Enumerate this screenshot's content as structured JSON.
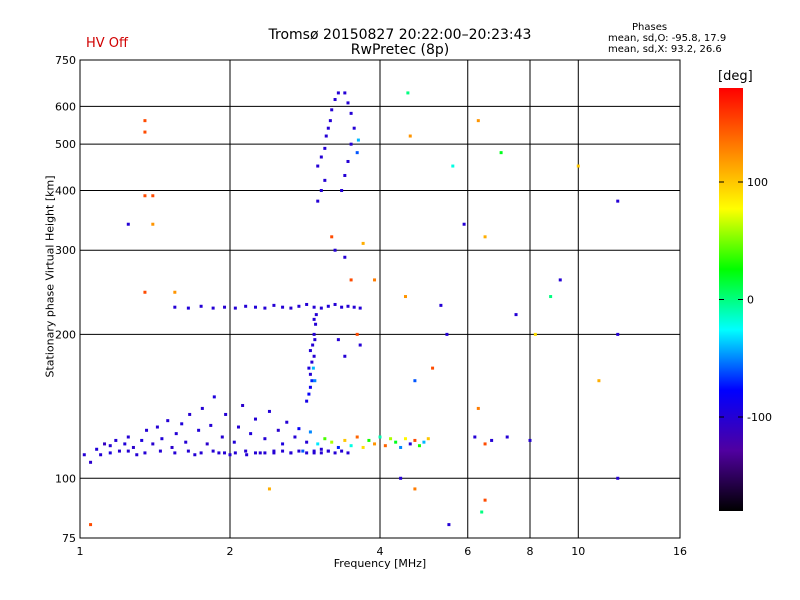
{
  "header": {
    "hv_status": "HV Off",
    "title": "Tromsø 20150827 20:22:00–20:23:43",
    "subtitle": "RwPretec (8p)"
  },
  "phases": {
    "title": "Phases",
    "o_line": "mean, sd,O: -95.8, 17.9",
    "x_line": "mean, sd,X: 93.2, 26.6"
  },
  "colorbar": {
    "label": "[deg]",
    "ticks": [
      "100",
      "0",
      "-100"
    ],
    "colors": [
      "#ff0000",
      "#ff8000",
      "#ffff00",
      "#00ff00",
      "#00ffff",
      "#0000ff",
      "#5000a0",
      "#000000"
    ]
  },
  "chart_data": {
    "type": "scatter",
    "xlabel": "Frequency [MHz]",
    "ylabel": "Stationary phase Virtual Height [km]",
    "xscale": "log",
    "yscale": "log",
    "xlim": [
      1,
      16
    ],
    "ylim": [
      75,
      750
    ],
    "xticks": [
      "1",
      "2",
      "4",
      "6",
      "8",
      "10",
      "16"
    ],
    "yticks": [
      "75",
      "100",
      "200",
      "300",
      "400",
      "500",
      "600",
      "750"
    ],
    "colorbar_range": [
      -180,
      180
    ],
    "series": [
      {
        "points": [
          [
            1.02,
            112,
            -100
          ],
          [
            1.05,
            108,
            -105
          ],
          [
            1.08,
            115,
            -98
          ],
          [
            1.1,
            112,
            -100
          ],
          [
            1.12,
            118,
            -110
          ],
          [
            1.15,
            113,
            -95
          ],
          [
            1.18,
            120,
            -100
          ],
          [
            1.2,
            114,
            -102
          ],
          [
            1.23,
            118,
            -98
          ],
          [
            1.25,
            122,
            -100
          ],
          [
            1.28,
            116,
            -105
          ],
          [
            1.3,
            112,
            -100
          ],
          [
            1.33,
            120,
            -95
          ],
          [
            1.36,
            126,
            -100
          ],
          [
            1.4,
            118,
            -103
          ],
          [
            1.43,
            128,
            -100
          ],
          [
            1.46,
            121,
            -98
          ],
          [
            1.5,
            132,
            -100
          ],
          [
            1.53,
            116,
            -105
          ],
          [
            1.56,
            124,
            -100
          ],
          [
            1.6,
            130,
            -97
          ],
          [
            1.63,
            119,
            -100
          ],
          [
            1.66,
            136,
            -102
          ],
          [
            1.7,
            112,
            -100
          ],
          [
            1.73,
            126,
            -98
          ],
          [
            1.76,
            140,
            -100
          ],
          [
            1.8,
            118,
            -105
          ],
          [
            1.83,
            129,
            -100
          ],
          [
            1.86,
            148,
            -96
          ],
          [
            1.9,
            113,
            -100
          ],
          [
            1.93,
            122,
            -101
          ],
          [
            1.96,
            136,
            -100
          ],
          [
            2.0,
            112,
            -100
          ],
          [
            2.04,
            119,
            -98
          ],
          [
            2.08,
            128,
            -100
          ],
          [
            2.12,
            142,
            -104
          ],
          [
            2.16,
            112,
            -100
          ],
          [
            2.2,
            124,
            -97
          ],
          [
            2.25,
            133,
            -100
          ],
          [
            2.3,
            113,
            -102
          ],
          [
            2.35,
            121,
            -100
          ],
          [
            2.4,
            138,
            -99
          ],
          [
            2.45,
            114,
            -100
          ],
          [
            2.5,
            126,
            -103
          ],
          [
            2.55,
            118,
            -95
          ],
          [
            2.6,
            131,
            -100
          ],
          [
            2.65,
            113,
            -98
          ],
          [
            2.7,
            122,
            -100
          ],
          [
            2.75,
            127,
            -80
          ],
          [
            2.8,
            114,
            -60
          ],
          [
            2.85,
            119,
            -100
          ],
          [
            2.9,
            125,
            -50
          ],
          [
            2.95,
            114,
            -100
          ],
          [
            3.0,
            118,
            -30
          ],
          [
            3.05,
            115,
            -100
          ],
          [
            3.1,
            121,
            40
          ],
          [
            3.15,
            114,
            -100
          ],
          [
            3.2,
            119,
            60
          ],
          [
            3.3,
            116,
            -70
          ],
          [
            3.4,
            120,
            100
          ],
          [
            3.5,
            117,
            -20
          ],
          [
            3.6,
            122,
            140
          ],
          [
            3.7,
            116,
            90
          ],
          [
            3.8,
            120,
            30
          ],
          [
            3.9,
            118,
            120
          ],
          [
            4.0,
            122,
            -10
          ],
          [
            4.1,
            117,
            140
          ],
          [
            4.2,
            121,
            60
          ],
          [
            4.3,
            119,
            20
          ],
          [
            4.4,
            116,
            -50
          ],
          [
            4.5,
            121,
            80
          ],
          [
            4.6,
            118,
            -100
          ],
          [
            4.7,
            120,
            150
          ],
          [
            4.8,
            117,
            30
          ],
          [
            4.9,
            119,
            -40
          ],
          [
            5.0,
            121,
            100
          ],
          [
            1.15,
            117,
            -100
          ],
          [
            1.25,
            114,
            -100
          ],
          [
            1.35,
            113,
            -100
          ],
          [
            1.45,
            114,
            -100
          ],
          [
            1.55,
            113,
            -100
          ],
          [
            1.65,
            114,
            -100
          ],
          [
            1.75,
            113,
            -100
          ],
          [
            1.85,
            114,
            -100
          ],
          [
            1.95,
            113,
            -100
          ],
          [
            2.05,
            113,
            -100
          ],
          [
            2.15,
            114,
            -100
          ],
          [
            2.25,
            113,
            -100
          ],
          [
            2.35,
            113,
            -100
          ],
          [
            2.45,
            113,
            -100
          ],
          [
            2.55,
            114,
            -100
          ],
          [
            2.65,
            113,
            -100
          ],
          [
            2.75,
            114,
            -100
          ],
          [
            2.85,
            113,
            -100
          ],
          [
            2.95,
            113,
            -100
          ],
          [
            3.05,
            113,
            -100
          ],
          [
            3.15,
            114,
            -100
          ],
          [
            3.25,
            113,
            -100
          ],
          [
            3.35,
            114,
            -100
          ],
          [
            3.45,
            113,
            -100
          ],
          [
            1.55,
            228,
            -100
          ],
          [
            1.65,
            227,
            -98
          ],
          [
            1.75,
            229,
            -100
          ],
          [
            1.85,
            227,
            -100
          ],
          [
            1.95,
            228,
            -102
          ],
          [
            2.05,
            227,
            -100
          ],
          [
            2.15,
            229,
            -100
          ],
          [
            2.25,
            228,
            -98
          ],
          [
            2.35,
            227,
            -100
          ],
          [
            2.45,
            230,
            -100
          ],
          [
            2.55,
            228,
            -100
          ],
          [
            2.65,
            227,
            -103
          ],
          [
            2.75,
            229,
            -100
          ],
          [
            2.85,
            231,
            -100
          ],
          [
            2.95,
            228,
            -100
          ],
          [
            3.05,
            227,
            -100
          ],
          [
            3.15,
            229,
            -97
          ],
          [
            3.25,
            231,
            -100
          ],
          [
            3.35,
            228,
            -100
          ],
          [
            3.45,
            229,
            -100
          ],
          [
            3.55,
            228,
            -100
          ],
          [
            3.65,
            227,
            -100
          ],
          [
            2.85,
            145,
            -90
          ],
          [
            2.88,
            150,
            -80
          ],
          [
            2.9,
            155,
            -85
          ],
          [
            2.92,
            160,
            -70
          ],
          [
            2.9,
            165,
            -100
          ],
          [
            2.88,
            170,
            -95
          ],
          [
            2.92,
            175,
            -100
          ],
          [
            2.95,
            180,
            -100
          ],
          [
            2.9,
            185,
            -98
          ],
          [
            2.93,
            190,
            -100
          ],
          [
            2.96,
            195,
            -100
          ],
          [
            2.95,
            200,
            -100
          ],
          [
            2.97,
            210,
            -100
          ],
          [
            2.95,
            215,
            -100
          ],
          [
            2.98,
            220,
            -100
          ],
          [
            2.94,
            170,
            -40
          ],
          [
            2.96,
            160,
            -50
          ],
          [
            3.0,
            380,
            -100
          ],
          [
            3.05,
            400,
            -100
          ],
          [
            3.1,
            420,
            -100
          ],
          [
            3.0,
            450,
            -100
          ],
          [
            3.05,
            470,
            -100
          ],
          [
            3.1,
            490,
            -100
          ],
          [
            3.12,
            520,
            -100
          ],
          [
            3.15,
            540,
            -100
          ],
          [
            3.18,
            560,
            -100
          ],
          [
            3.2,
            590,
            -100
          ],
          [
            3.25,
            620,
            -100
          ],
          [
            3.3,
            640,
            -100
          ],
          [
            3.35,
            400,
            -100
          ],
          [
            3.4,
            430,
            -100
          ],
          [
            3.45,
            460,
            -100
          ],
          [
            3.5,
            500,
            -100
          ],
          [
            3.55,
            540,
            -100
          ],
          [
            3.5,
            580,
            -100
          ],
          [
            3.45,
            610,
            -100
          ],
          [
            3.4,
            640,
            -100
          ],
          [
            3.6,
            480,
            -60
          ],
          [
            3.62,
            510,
            -40
          ],
          [
            1.35,
            560,
            150
          ],
          [
            1.35,
            530,
            150
          ],
          [
            1.35,
            390,
            150
          ],
          [
            1.4,
            390,
            150
          ],
          [
            1.4,
            340,
            120
          ],
          [
            1.25,
            340,
            -100
          ],
          [
            1.35,
            245,
            150
          ],
          [
            1.55,
            245,
            120
          ],
          [
            3.2,
            320,
            150
          ],
          [
            3.25,
            300,
            -100
          ],
          [
            3.4,
            290,
            -100
          ],
          [
            3.5,
            260,
            150
          ],
          [
            3.7,
            310,
            110
          ],
          [
            3.9,
            260,
            130
          ],
          [
            3.6,
            200,
            150
          ],
          [
            3.65,
            190,
            -100
          ],
          [
            4.55,
            640,
            0
          ],
          [
            4.6,
            520,
            120
          ],
          [
            5.3,
            230,
            -100
          ],
          [
            5.45,
            200,
            -100
          ],
          [
            5.6,
            450,
            -20
          ],
          [
            5.9,
            340,
            -100
          ],
          [
            6.3,
            560,
            120
          ],
          [
            6.5,
            320,
            110
          ],
          [
            7.0,
            480,
            20
          ],
          [
            7.5,
            220,
            -100
          ],
          [
            8.2,
            200,
            90
          ],
          [
            8.8,
            240,
            0
          ],
          [
            9.2,
            260,
            -100
          ],
          [
            10.0,
            450,
            100
          ],
          [
            11.0,
            160,
            110
          ],
          [
            12.0,
            200,
            -100
          ],
          [
            12.0,
            100,
            -100
          ],
          [
            12.0,
            380,
            -100
          ],
          [
            6.3,
            140,
            130
          ],
          [
            6.5,
            90,
            150
          ],
          [
            6.4,
            85,
            0
          ],
          [
            5.5,
            80,
            -100
          ],
          [
            4.7,
            95,
            130
          ],
          [
            4.4,
            100,
            -100
          ],
          [
            1.05,
            80,
            150
          ],
          [
            2.4,
            95,
            110
          ],
          [
            6.2,
            122,
            -100
          ],
          [
            6.5,
            118,
            150
          ],
          [
            6.7,
            120,
            -100
          ],
          [
            7.2,
            122,
            -100
          ],
          [
            8.0,
            120,
            -100
          ],
          [
            5.1,
            170,
            150
          ],
          [
            3.4,
            180,
            -100
          ],
          [
            3.3,
            195,
            -100
          ],
          [
            4.5,
            240,
            120
          ],
          [
            4.7,
            160,
            -60
          ]
        ]
      }
    ]
  }
}
